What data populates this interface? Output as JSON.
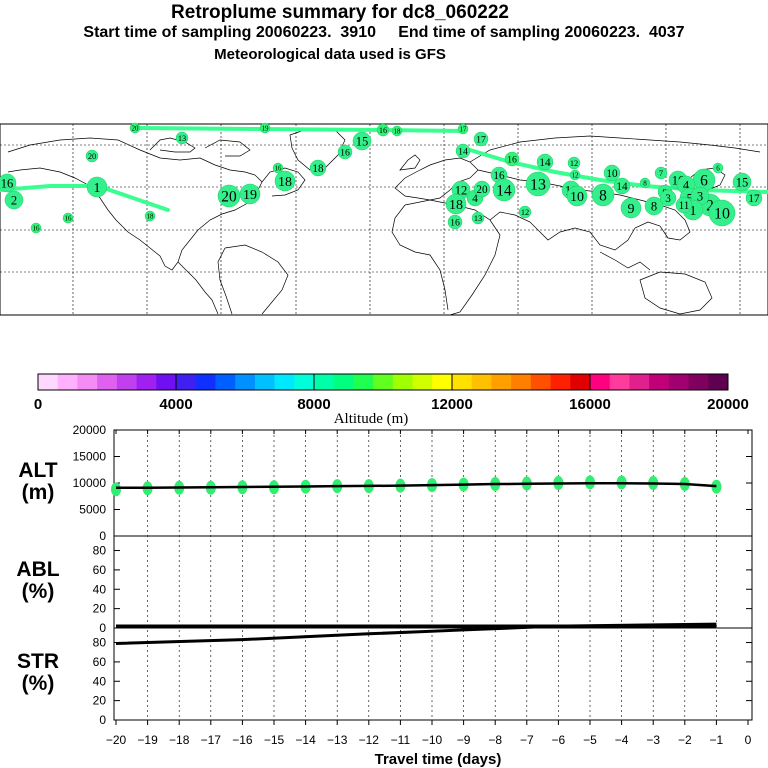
{
  "header": {
    "title": "Retroplume summary for dc8_060222",
    "sampling": "Start time of sampling 20060223.  3910     End time of sampling 20060223.  4037",
    "met": "Meteorological data used is GFS"
  },
  "colorbar": {
    "label": "Altitude (m)",
    "ticks": [
      "0",
      "4000",
      "8000",
      "12000",
      "16000",
      "20000"
    ],
    "colors": [
      "#ffd8ff",
      "#ffb0ff",
      "#f58cf5",
      "#e060f0",
      "#c040f0",
      "#a020f0",
      "#7010f0",
      "#4020f0",
      "#1030ff",
      "#0060ff",
      "#0090ff",
      "#00c0ff",
      "#00e8ff",
      "#00ffd8",
      "#00ffaa",
      "#00ff80",
      "#20ff50",
      "#60ff20",
      "#a0ff00",
      "#d0ff00",
      "#ffff00",
      "#ffe000",
      "#ffc000",
      "#ffa000",
      "#ff8000",
      "#ff5000",
      "#ff2000",
      "#e00000",
      "#ff0080",
      "#ff3c9c",
      "#e0208c",
      "#c00078",
      "#a00070",
      "#800060",
      "#600050"
    ]
  },
  "map": {
    "labels": [
      "20",
      "19",
      "16",
      "15",
      "14",
      "13",
      "17",
      "18",
      "16",
      "15",
      "14",
      "13",
      "12",
      "11",
      "10",
      "9",
      "8",
      "7",
      "6",
      "5",
      "4",
      "3",
      "2",
      "1"
    ]
  },
  "chart_data": [
    {
      "type": "scatter",
      "panel": "ALT",
      "ylabel_line1": "ALT",
      "ylabel_line2": "(m)",
      "yticks": [
        "20000",
        "15000",
        "10000",
        "5000",
        "0"
      ],
      "ylim": [
        0,
        20000
      ],
      "x": [
        -20,
        -19,
        -18,
        -17,
        -16,
        -15,
        -14,
        -13,
        -12,
        -11,
        -10,
        -9,
        -8,
        -7,
        -6,
        -5,
        -4,
        -3,
        -2,
        -1
      ],
      "values": [
        8800,
        9000,
        9100,
        9100,
        9200,
        9200,
        9300,
        9400,
        9400,
        9500,
        9600,
        9700,
        9800,
        9900,
        10000,
        10100,
        10100,
        10000,
        9800,
        9300
      ],
      "mean_line": [
        9100,
        9100,
        9150,
        9200,
        9250,
        9300,
        9350,
        9400,
        9450,
        9500,
        9600,
        9700,
        9800,
        9850,
        9900,
        9950,
        9950,
        9900,
        9800,
        9400
      ]
    },
    {
      "type": "line",
      "panel": "ABL",
      "ylabel_line1": "ABL",
      "ylabel_line2": "(%)",
      "yticks": [
        "80",
        "60",
        "40",
        "20",
        "0"
      ],
      "ylim": [
        0,
        95
      ],
      "x": [
        -20,
        -1
      ],
      "values": [
        0,
        0
      ]
    },
    {
      "type": "line",
      "panel": "STR",
      "ylabel_line1": "STR",
      "ylabel_line2": "(%)",
      "yticks": [
        "80",
        "60",
        "40",
        "20",
        "0"
      ],
      "ylim": [
        0,
        95
      ],
      "x": [
        -20,
        -16,
        -12,
        -9,
        -6,
        -1
      ],
      "values": [
        79,
        83,
        89,
        93,
        97,
        99
      ]
    }
  ],
  "xaxis": {
    "label": "Travel time (days)",
    "ticks": [
      "−20",
      "−19",
      "−18",
      "−17",
      "−16",
      "−15",
      "−14",
      "−13",
      "−12",
      "−11",
      "−10",
      "−9",
      "−8",
      "−7",
      "−6",
      "−5",
      "−4",
      "−3",
      "−2",
      "−1",
      "0"
    ],
    "xlim": [
      -20.2,
      0.8
    ]
  }
}
